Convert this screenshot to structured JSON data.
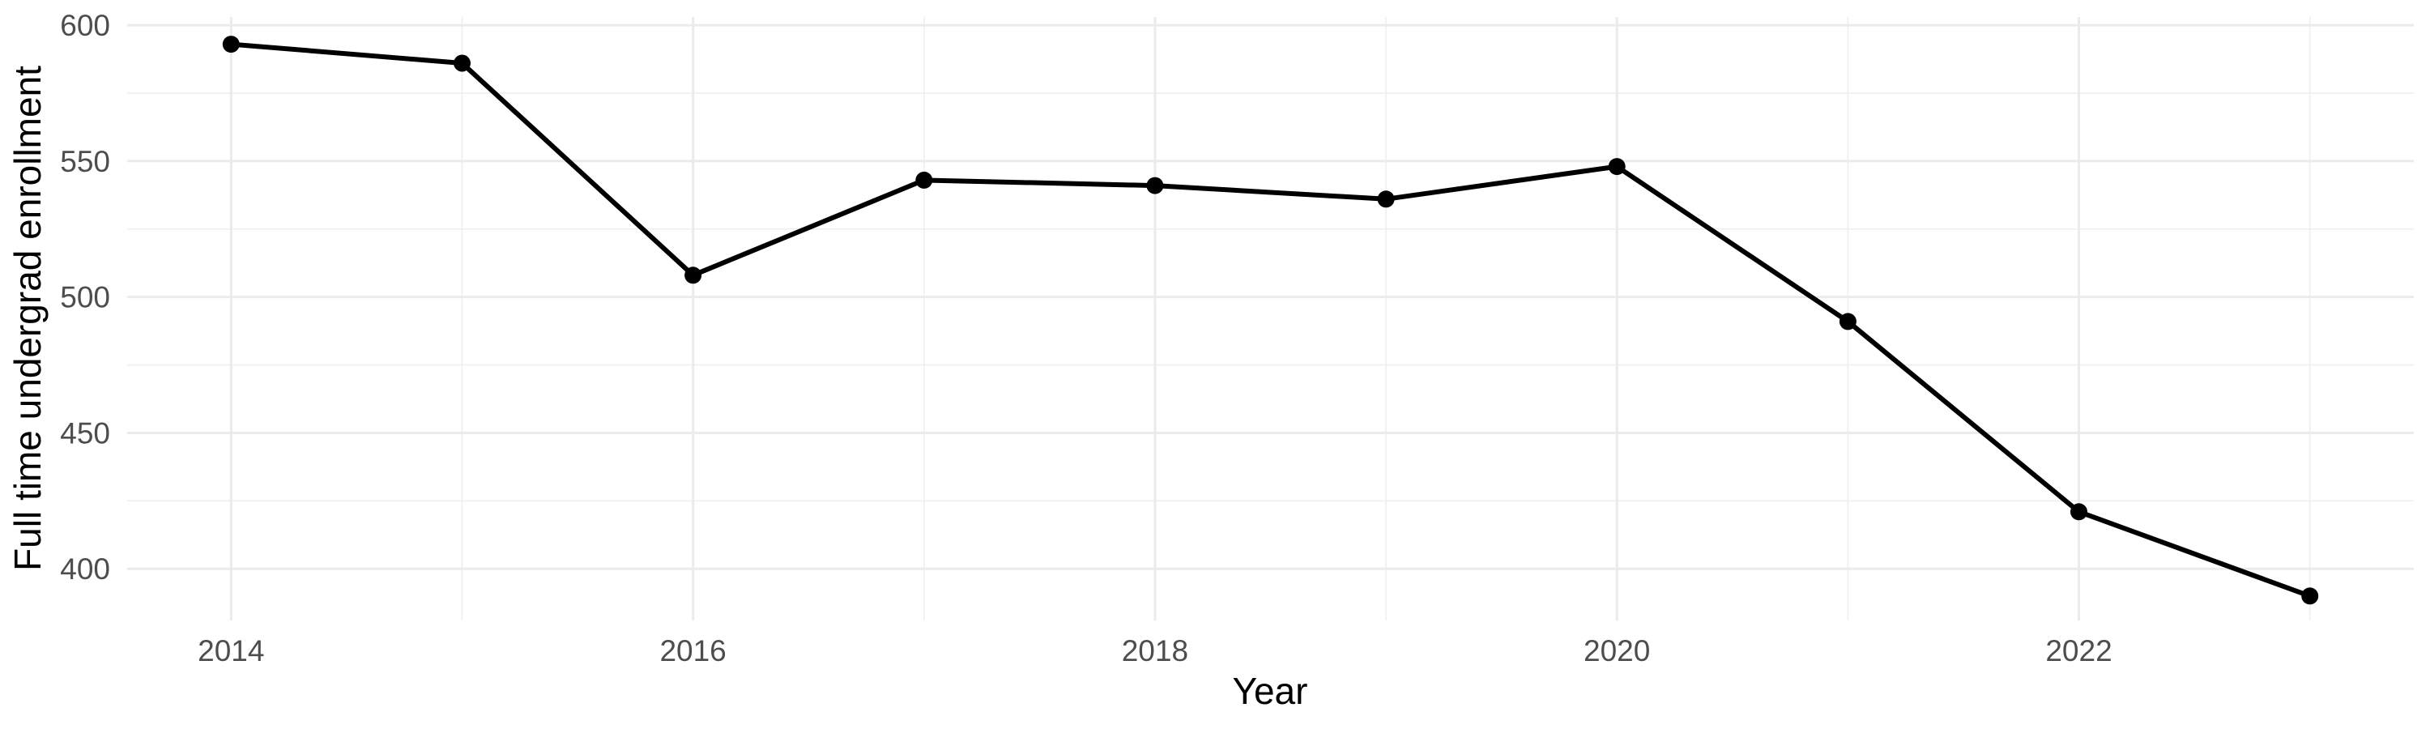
{
  "figure": {
    "kind": "statistical line chart (ggplot-style, minimal theme)",
    "background": "#FFFFFF"
  },
  "chart_data": {
    "type": "line",
    "title": "",
    "xlabel": "Year",
    "ylabel": "Full time undergrad enrollment",
    "series": [
      {
        "name": "Full time undergrad enrollment",
        "x": [
          2014,
          2015,
          2016,
          2017,
          2018,
          2019,
          2020,
          2021,
          2022,
          2023
        ],
        "values": [
          593,
          586,
          508,
          543,
          541,
          536,
          548,
          491,
          421,
          390
        ]
      }
    ],
    "xlim": [
      2013.55,
      2023.45
    ],
    "ylim": [
      381,
      603
    ],
    "x_ticks_major": [
      2014,
      2016,
      2018,
      2020,
      2022
    ],
    "x_gridlines_minor": [
      2015,
      2017,
      2019,
      2021,
      2023
    ],
    "y_ticks_major": [
      400,
      450,
      500,
      550,
      600
    ],
    "y_gridlines_minor": [
      425,
      475,
      525,
      575
    ],
    "grid": "major and minor, horizontal and vertical",
    "legend": "none",
    "colors": {
      "line": "#000000",
      "point": "#000000",
      "grid_major": "#EBEBEB",
      "grid_minor": "#EFEFEF",
      "tick_label": "#4D4D4D",
      "axis_title": "#000000",
      "background": "#FFFFFF"
    }
  }
}
